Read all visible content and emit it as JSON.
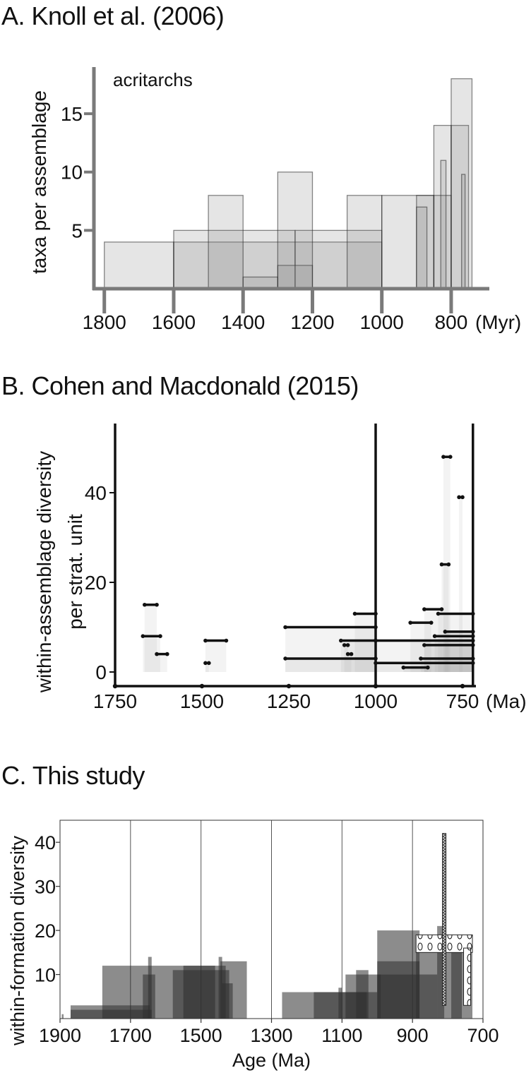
{
  "panels": {
    "a_title": "A. Knoll et al. (2006)",
    "b_title": "B. Cohen and Macdonald (2015)",
    "c_title": "C. This study"
  },
  "chart_data": [
    {
      "type": "bar",
      "panel": "A",
      "title": "A. Knoll et al. (2006)",
      "annotation": "acritarchs",
      "ylabel": "taxa per assemblage",
      "xunit": "(Myr)",
      "x_reversed": true,
      "xlim": [
        1830,
        690
      ],
      "ylim": [
        0,
        19
      ],
      "xticks": [
        1800,
        1600,
        1400,
        1200,
        1000,
        800
      ],
      "yticks": [
        5,
        10,
        15
      ],
      "grid": false,
      "bars": [
        {
          "x0": 1800,
          "x1": 1600,
          "value": 4
        },
        {
          "x0": 1600,
          "x1": 1000,
          "value": 4
        },
        {
          "x0": 1600,
          "x1": 1250,
          "value": 5
        },
        {
          "x0": 1250,
          "x1": 1000,
          "value": 5
        },
        {
          "x0": 1500,
          "x1": 1400,
          "value": 8
        },
        {
          "x0": 1400,
          "x1": 1300,
          "value": 1
        },
        {
          "x0": 1300,
          "x1": 1200,
          "value": 2
        },
        {
          "x0": 1300,
          "x1": 1200,
          "value": 10
        },
        {
          "x0": 1100,
          "x1": 1000,
          "value": 8
        },
        {
          "x0": 1000,
          "x1": 850,
          "value": 8
        },
        {
          "x0": 900,
          "x1": 850,
          "value": 8
        },
        {
          "x0": 900,
          "x1": 870,
          "value": 7
        },
        {
          "x0": 850,
          "x1": 800,
          "value": 14
        },
        {
          "x0": 850,
          "x1": 800,
          "value": 8
        },
        {
          "x0": 830,
          "x1": 815,
          "value": 11
        },
        {
          "x0": 800,
          "x1": 750,
          "value": 14
        },
        {
          "x0": 800,
          "x1": 740,
          "value": 18
        },
        {
          "x0": 770,
          "x1": 760,
          "value": 9.8
        }
      ]
    },
    {
      "type": "scatter",
      "panel": "B",
      "title": "B. Cohen and Macdonald (2015)",
      "ylabel": "within-assemblage diversity per strat. unit",
      "xunit": "(Ma)",
      "x_reversed": true,
      "xlim": [
        1760,
        710
      ],
      "ylim": [
        -2,
        55
      ],
      "xticks": [
        1750,
        1500,
        1250,
        1000,
        750
      ],
      "yticks": [
        0,
        20,
        40
      ],
      "vlines": [
        1000,
        720
      ],
      "grid": false,
      "ranges": [
        {
          "x0": 1665,
          "x1": 1630,
          "value": 15
        },
        {
          "x0": 1670,
          "x1": 1620,
          "value": 8
        },
        {
          "x0": 1630,
          "x1": 1600,
          "value": 4
        },
        {
          "x0": 1490,
          "x1": 1430,
          "value": 7
        },
        {
          "x0": 1490,
          "x1": 1480,
          "value": 2
        },
        {
          "x0": 1260,
          "x1": 1000,
          "value": 10
        },
        {
          "x0": 1260,
          "x1": 1000,
          "value": 3
        },
        {
          "x0": 1060,
          "x1": 1000,
          "value": 13
        },
        {
          "x0": 1100,
          "x1": 1000,
          "value": 7
        },
        {
          "x0": 1090,
          "x1": 1080,
          "value": 6
        },
        {
          "x0": 1080,
          "x1": 1070,
          "value": 4
        },
        {
          "x0": 1000,
          "x1": 720,
          "value": 7
        },
        {
          "x0": 1000,
          "x1": 720,
          "value": 2
        },
        {
          "x0": 920,
          "x1": 850,
          "value": 1
        },
        {
          "x0": 900,
          "x1": 840,
          "value": 11
        },
        {
          "x0": 860,
          "x1": 810,
          "value": 14
        },
        {
          "x0": 820,
          "x1": 720,
          "value": 13
        },
        {
          "x0": 870,
          "x1": 720,
          "value": 3
        },
        {
          "x0": 860,
          "x1": 720,
          "value": 6
        },
        {
          "x0": 830,
          "x1": 720,
          "value": 8
        },
        {
          "x0": 800,
          "x1": 720,
          "value": 9
        },
        {
          "x0": 810,
          "x1": 790,
          "value": 24
        },
        {
          "x0": 805,
          "x1": 785,
          "value": 48
        },
        {
          "x0": 760,
          "x1": 750,
          "value": 39
        }
      ]
    },
    {
      "type": "bar",
      "panel": "C",
      "title": "C. This study",
      "ylabel": "within-formation diversity",
      "xlabel": "Age (Ma)",
      "x_reversed": true,
      "xlim": [
        1900,
        700
      ],
      "ylim": [
        0,
        45
      ],
      "xticks": [
        1900,
        1700,
        1500,
        1300,
        1100,
        900,
        700
      ],
      "yticks": [
        10,
        20,
        30,
        40
      ],
      "vlines": [
        1700,
        1500,
        1300,
        1100,
        900
      ],
      "grid": false,
      "bars": [
        {
          "x0": 1895,
          "x1": 1890,
          "value": 1
        },
        {
          "x0": 1870,
          "x1": 1645,
          "value": 3
        },
        {
          "x0": 1870,
          "x1": 1640,
          "value": 2
        },
        {
          "x0": 1780,
          "x1": 1460,
          "value": 12
        },
        {
          "x0": 1665,
          "x1": 1630,
          "value": 10
        },
        {
          "x0": 1650,
          "x1": 1640,
          "value": 14
        },
        {
          "x0": 1580,
          "x1": 1420,
          "value": 11
        },
        {
          "x0": 1550,
          "x1": 1430,
          "value": 12
        },
        {
          "x0": 1450,
          "x1": 1440,
          "value": 14
        },
        {
          "x0": 1445,
          "x1": 1370,
          "value": 13
        },
        {
          "x0": 1440,
          "x1": 1410,
          "value": 8
        },
        {
          "x0": 1270,
          "x1": 1030,
          "value": 6
        },
        {
          "x0": 1180,
          "x1": 1000,
          "value": 6
        },
        {
          "x0": 1110,
          "x1": 1100,
          "value": 7
        },
        {
          "x0": 1090,
          "x1": 990,
          "value": 10
        },
        {
          "x0": 1060,
          "x1": 1025,
          "value": 11
        },
        {
          "x0": 1000,
          "x1": 880,
          "value": 20
        },
        {
          "x0": 1000,
          "x1": 880,
          "value": 13
        },
        {
          "x0": 1000,
          "x1": 830,
          "value": 10
        },
        {
          "x0": 890,
          "x1": 730,
          "value": 19
        },
        {
          "x0": 830,
          "x1": 810,
          "value": 21
        },
        {
          "x0": 790,
          "x1": 760,
          "value": 18
        }
      ],
      "patterned": [
        {
          "x0": 890,
          "x1": 730,
          "y0": 15,
          "y1": 19,
          "pattern": "drops"
        },
        {
          "x0": 815,
          "x1": 805,
          "y0": 3,
          "y1": 42,
          "pattern": "crosshatch"
        },
        {
          "x0": 755,
          "x1": 735,
          "y0": 3,
          "y1": 16,
          "pattern": "drops"
        }
      ]
    }
  ]
}
